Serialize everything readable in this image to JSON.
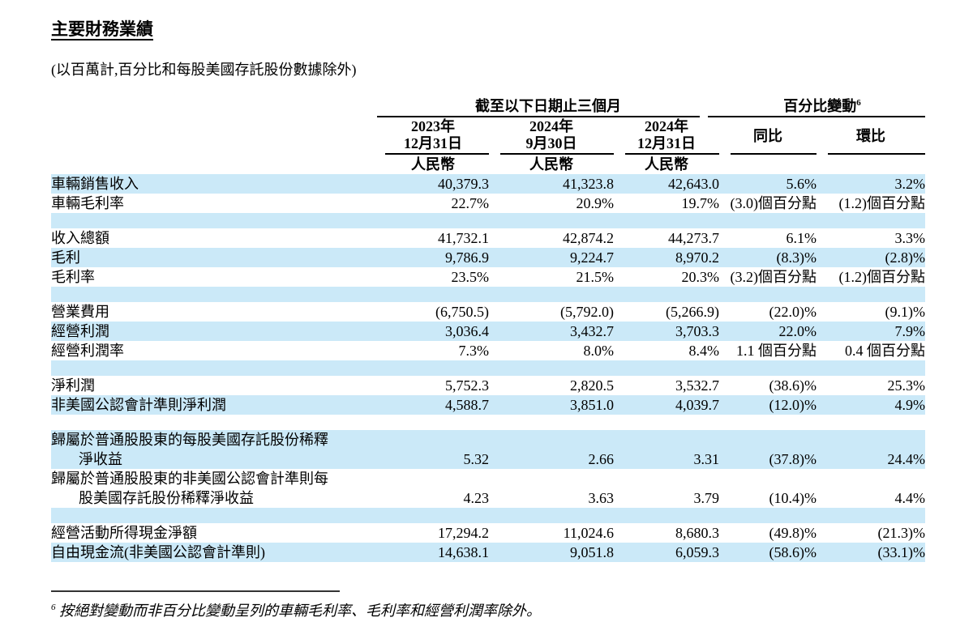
{
  "page": {
    "title": "主要財務業績",
    "subtitle": "(以百萬計,百分比和每股美國存託股份數據除外)",
    "footnote_marker": "6",
    "footnote_text": " 按絕對變動而非百分比變動呈列的車輛毛利率、毛利率和經營利潤率除外。"
  },
  "colors": {
    "row_highlight": "#CBE9F8",
    "text": "#000000"
  },
  "table": {
    "group_headers": {
      "period": "截至以下日期止三個月",
      "pct_change": "百分比變動",
      "pct_change_superscript": "6"
    },
    "columns": [
      {
        "line1": "2023年",
        "line2": "12月31日",
        "currency": "人民幣"
      },
      {
        "line1": "2024年",
        "line2": "9月30日",
        "currency": "人民幣"
      },
      {
        "line1": "2024年",
        "line2": "12月31日",
        "currency": "人民幣"
      },
      {
        "label": "同比"
      },
      {
        "label": "環比"
      }
    ],
    "rows": [
      {
        "type": "data",
        "bg": "blue",
        "label": [
          "車輛銷售收入"
        ],
        "values": [
          "40,379.3",
          "41,323.8",
          "42,643.0",
          "5.6%",
          "3.2%"
        ]
      },
      {
        "type": "data",
        "bg": "white",
        "label": [
          "車輛毛利率"
        ],
        "values": [
          "22.7%",
          "20.9%",
          "19.7%",
          "(3.0)個百分點",
          "(1.2)個百分點"
        ]
      },
      {
        "type": "spacer",
        "bg": "blue"
      },
      {
        "type": "data",
        "bg": "white",
        "label": [
          "收入總額"
        ],
        "values": [
          "41,732.1",
          "42,874.2",
          "44,273.7",
          "6.1%",
          "3.3%"
        ]
      },
      {
        "type": "data",
        "bg": "blue",
        "label": [
          "毛利"
        ],
        "values": [
          "9,786.9",
          "9,224.7",
          "8,970.2",
          "(8.3)%",
          "(2.8)%"
        ]
      },
      {
        "type": "data",
        "bg": "white",
        "label": [
          "毛利率"
        ],
        "values": [
          "23.5%",
          "21.5%",
          "20.3%",
          "(3.2)個百分點",
          "(1.2)個百分點"
        ]
      },
      {
        "type": "spacer",
        "bg": "blue"
      },
      {
        "type": "data",
        "bg": "white",
        "label": [
          "營業費用"
        ],
        "values": [
          "(6,750.5)",
          "(5,792.0)",
          "(5,266.9)",
          "(22.0)%",
          "(9.1)%"
        ]
      },
      {
        "type": "data",
        "bg": "blue",
        "label": [
          "經營利潤"
        ],
        "values": [
          "3,036.4",
          "3,432.7",
          "3,703.3",
          "22.0%",
          "7.9%"
        ]
      },
      {
        "type": "data",
        "bg": "white",
        "label": [
          "經營利潤率"
        ],
        "values": [
          "7.3%",
          "8.0%",
          "8.4%",
          "1.1 個百分點",
          "0.4 個百分點"
        ]
      },
      {
        "type": "spacer",
        "bg": "blue"
      },
      {
        "type": "data",
        "bg": "white",
        "label": [
          "淨利潤"
        ],
        "values": [
          "5,752.3",
          "2,820.5",
          "3,532.7",
          "(38.6)%",
          "25.3%"
        ]
      },
      {
        "type": "data",
        "bg": "blue",
        "label": [
          "非美國公認會計準則淨利潤"
        ],
        "values": [
          "4,588.7",
          "3,851.0",
          "4,039.7",
          "(12.0)%",
          "4.9%"
        ]
      },
      {
        "type": "spacer",
        "bg": "white"
      },
      {
        "type": "data",
        "bg": "blue",
        "label": [
          "歸屬於普通股股東的每股美國存託股份稀釋",
          "淨收益"
        ],
        "values": [
          "5.32",
          "2.66",
          "3.31",
          "(37.8)%",
          "24.4%"
        ]
      },
      {
        "type": "data",
        "bg": "white",
        "label": [
          "歸屬於普通股股東的非美國公認會計準則每",
          "股美國存託股份稀釋淨收益"
        ],
        "values": [
          "4.23",
          "3.63",
          "3.79",
          "(10.4)%",
          "4.4%"
        ]
      },
      {
        "type": "spacer",
        "bg": "blue"
      },
      {
        "type": "data",
        "bg": "white",
        "label": [
          "經營活動所得現金淨額"
        ],
        "values": [
          "17,294.2",
          "11,024.6",
          "8,680.3",
          "(49.8)%",
          "(21.3)%"
        ]
      },
      {
        "type": "data",
        "bg": "blue",
        "label": [
          "自由現金流(非美國公認會計準則)"
        ],
        "values": [
          "14,638.1",
          "9,051.8",
          "6,059.3",
          "(58.6)%",
          "(33.1)%"
        ]
      }
    ]
  }
}
